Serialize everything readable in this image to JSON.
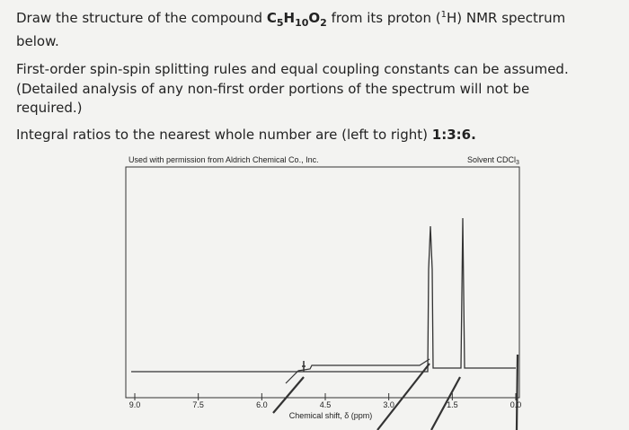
{
  "question": {
    "line1": [
      "Draw the structure of the compound ",
      "C",
      "5",
      "H",
      "10",
      "O",
      "2",
      " from its proton (",
      "1",
      "H) NMR spectrum"
    ],
    "line2": "below.",
    "para2": [
      "First-order spin-spin splitting rules and equal coupling constants can be assumed.",
      "(Detailed analysis of any non-first order portions of the spectrum will not be",
      "required.)"
    ],
    "para3": [
      "Integral ratios to the nearest whole number are (left to right) ",
      "1:3:6."
    ]
  },
  "figure": {
    "credit": "Used with permission from Aldrich Chemical Co., Inc.",
    "solvent": [
      "Solvent CDCl",
      "3"
    ],
    "ticks": [
      "9.0",
      "7.5",
      "6.0",
      "4.5",
      "3.0",
      "1.5",
      "0.0"
    ],
    "x_label": "Chemical shift, δ (ppm)"
  }
}
